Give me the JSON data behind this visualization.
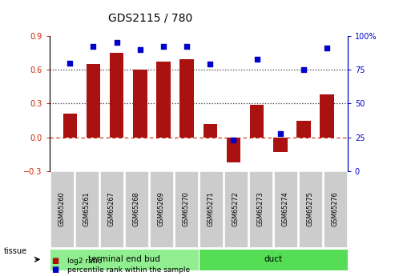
{
  "title": "GDS2115 / 780",
  "samples": [
    "GSM65260",
    "GSM65261",
    "GSM65267",
    "GSM65268",
    "GSM65269",
    "GSM65270",
    "GSM65271",
    "GSM65272",
    "GSM65273",
    "GSM65274",
    "GSM65275",
    "GSM65276"
  ],
  "log2_ratio": [
    0.21,
    0.65,
    0.75,
    0.6,
    0.67,
    0.69,
    0.12,
    -0.22,
    0.29,
    -0.13,
    0.15,
    0.38
  ],
  "percentile_rank": [
    80,
    92,
    95,
    90,
    92,
    92,
    79,
    23,
    83,
    28,
    75,
    91
  ],
  "tissue_groups": [
    {
      "label": "terminal end bud",
      "start": 0,
      "end": 6,
      "color": "#90EE90"
    },
    {
      "label": "duct",
      "start": 6,
      "end": 12,
      "color": "#55DD55"
    }
  ],
  "bar_color": "#AA1111",
  "dot_color": "#0000CC",
  "left_axis_color": "#CC2200",
  "right_axis_color": "#0000CC",
  "ylim_left": [
    -0.3,
    0.9
  ],
  "ylim_right": [
    0,
    100
  ],
  "hline_y": [
    0.3,
    0.6
  ],
  "zero_line_color": "#CC2200",
  "bg_plot": "#FFFFFF",
  "bg_label": "#CCCCCC",
  "dotted_line_color": "#333333",
  "fig_width": 4.93,
  "fig_height": 3.45,
  "fig_dpi": 100
}
